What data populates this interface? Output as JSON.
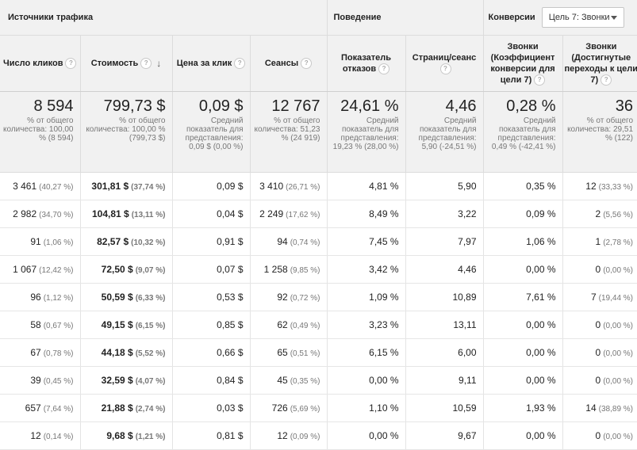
{
  "header": {
    "group_traffic": "Источники трафика",
    "group_behavior": "Поведение",
    "group_conversions": "Конверсии",
    "goal_dropdown_value": "Цель 7: Звонки"
  },
  "columns": [
    {
      "label": "Число кликов",
      "help": "?"
    },
    {
      "label": "Стоимость",
      "help": "?",
      "sort_icon": "↓"
    },
    {
      "label": "Цена за клик",
      "help": "?"
    },
    {
      "label": "Сеансы",
      "help": "?"
    },
    {
      "label": "Показатель отказов",
      "help": "?"
    },
    {
      "label": "Страниц/сеанс",
      "help": "?"
    },
    {
      "label": "Звонки (Коэффициент конверсии для цели 7)",
      "help": "?"
    },
    {
      "label": "Звонки (Достигнутые переходы к цели 7)",
      "help": "?"
    }
  ],
  "totals": [
    {
      "value": "8 594",
      "sub": "% от общего количества: 100,00 % (8 594)"
    },
    {
      "value": "799,73 $",
      "sub": "% от общего количества: 100,00 % (799,73 $)"
    },
    {
      "value": "0,09 $",
      "sub": "Средний показатель для представления: 0,09 $ (0,00 %)"
    },
    {
      "value": "12 767",
      "sub": "% от общего количества: 51,23 % (24 919)"
    },
    {
      "value": "24,61 %",
      "sub": "Средний показатель для представления: 19,23 % (28,00 %)"
    },
    {
      "value": "4,46",
      "sub": "Средний показатель для представления: 5,90 (-24,51 %)"
    },
    {
      "value": "0,28 %",
      "sub": "Средний показатель для представления: 0,49 % (-42,41 %)"
    },
    {
      "value": "36",
      "sub": "% от общего количества: 29,51 % (122)"
    }
  ],
  "rows": [
    {
      "clicks": "3 461",
      "clicks_pct": "(40,27 %)",
      "cost": "301,81 $",
      "cost_pct": "(37,74 %)",
      "cpc": "0,09 $",
      "sessions": "3 410",
      "sessions_pct": "(26,71 %)",
      "bounce": "4,81 %",
      "pages": "5,90",
      "conv_rate": "0,35 %",
      "conv": "12",
      "conv_pct": "(33,33 %)"
    },
    {
      "clicks": "2 982",
      "clicks_pct": "(34,70 %)",
      "cost": "104,81 $",
      "cost_pct": "(13,11 %)",
      "cpc": "0,04 $",
      "sessions": "2 249",
      "sessions_pct": "(17,62 %)",
      "bounce": "8,49 %",
      "pages": "3,22",
      "conv_rate": "0,09 %",
      "conv": "2",
      "conv_pct": "(5,56 %)"
    },
    {
      "clicks": "91",
      "clicks_pct": "(1,06 %)",
      "cost": "82,57 $",
      "cost_pct": "(10,32 %)",
      "cpc": "0,91 $",
      "sessions": "94",
      "sessions_pct": "(0,74 %)",
      "bounce": "7,45 %",
      "pages": "7,97",
      "conv_rate": "1,06 %",
      "conv": "1",
      "conv_pct": "(2,78 %)"
    },
    {
      "clicks": "1 067",
      "clicks_pct": "(12,42 %)",
      "cost": "72,50 $",
      "cost_pct": "(9,07 %)",
      "cpc": "0,07 $",
      "sessions": "1 258",
      "sessions_pct": "(9,85 %)",
      "bounce": "3,42 %",
      "pages": "4,46",
      "conv_rate": "0,00 %",
      "conv": "0",
      "conv_pct": "(0,00 %)"
    },
    {
      "clicks": "96",
      "clicks_pct": "(1,12 %)",
      "cost": "50,59 $",
      "cost_pct": "(6,33 %)",
      "cpc": "0,53 $",
      "sessions": "92",
      "sessions_pct": "(0,72 %)",
      "bounce": "1,09 %",
      "pages": "10,89",
      "conv_rate": "7,61 %",
      "conv": "7",
      "conv_pct": "(19,44 %)"
    },
    {
      "clicks": "58",
      "clicks_pct": "(0,67 %)",
      "cost": "49,15 $",
      "cost_pct": "(6,15 %)",
      "cpc": "0,85 $",
      "sessions": "62",
      "sessions_pct": "(0,49 %)",
      "bounce": "3,23 %",
      "pages": "13,11",
      "conv_rate": "0,00 %",
      "conv": "0",
      "conv_pct": "(0,00 %)"
    },
    {
      "clicks": "67",
      "clicks_pct": "(0,78 %)",
      "cost": "44,18 $",
      "cost_pct": "(5,52 %)",
      "cpc": "0,66 $",
      "sessions": "65",
      "sessions_pct": "(0,51 %)",
      "bounce": "6,15 %",
      "pages": "6,00",
      "conv_rate": "0,00 %",
      "conv": "0",
      "conv_pct": "(0,00 %)"
    },
    {
      "clicks": "39",
      "clicks_pct": "(0,45 %)",
      "cost": "32,59 $",
      "cost_pct": "(4,07 %)",
      "cpc": "0,84 $",
      "sessions": "45",
      "sessions_pct": "(0,35 %)",
      "bounce": "0,00 %",
      "pages": "9,11",
      "conv_rate": "0,00 %",
      "conv": "0",
      "conv_pct": "(0,00 %)"
    },
    {
      "clicks": "657",
      "clicks_pct": "(7,64 %)",
      "cost": "21,88 $",
      "cost_pct": "(2,74 %)",
      "cpc": "0,03 $",
      "sessions": "726",
      "sessions_pct": "(5,69 %)",
      "bounce": "1,10 %",
      "pages": "10,59",
      "conv_rate": "1,93 %",
      "conv": "14",
      "conv_pct": "(38,89 %)"
    },
    {
      "clicks": "12",
      "clicks_pct": "(0,14 %)",
      "cost": "9,68 $",
      "cost_pct": "(1,21 %)",
      "cpc": "0,81 $",
      "sessions": "12",
      "sessions_pct": "(0,09 %)",
      "bounce": "0,00 %",
      "pages": "9,67",
      "conv_rate": "0,00 %",
      "conv": "0",
      "conv_pct": "(0,00 %)"
    }
  ]
}
